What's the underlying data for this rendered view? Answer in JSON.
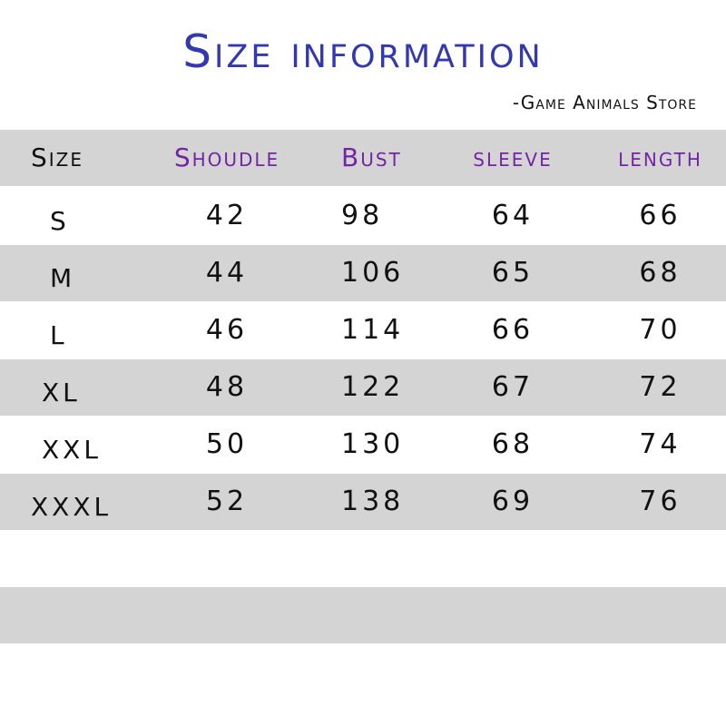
{
  "title": "Size information",
  "subtitle": "-Game Animals Store",
  "colors": {
    "title": "#3438b0",
    "header_purple": "#7424a6",
    "stripe": "#d4d4d4"
  },
  "table": {
    "headers": [
      "Size",
      "Shoudle",
      "Bust",
      "sleeve",
      "length"
    ],
    "rows": [
      [
        "S",
        "42",
        "98",
        "64",
        "66"
      ],
      [
        "M",
        "44",
        "106",
        "65",
        "68"
      ],
      [
        "L",
        "46",
        "114",
        "66",
        "70"
      ],
      [
        "XL",
        "48",
        "122",
        "67",
        "72"
      ],
      [
        "XXL",
        "50",
        "130",
        "68",
        "74"
      ],
      [
        "XXXL",
        "52",
        "138",
        "69",
        "76"
      ]
    ]
  }
}
